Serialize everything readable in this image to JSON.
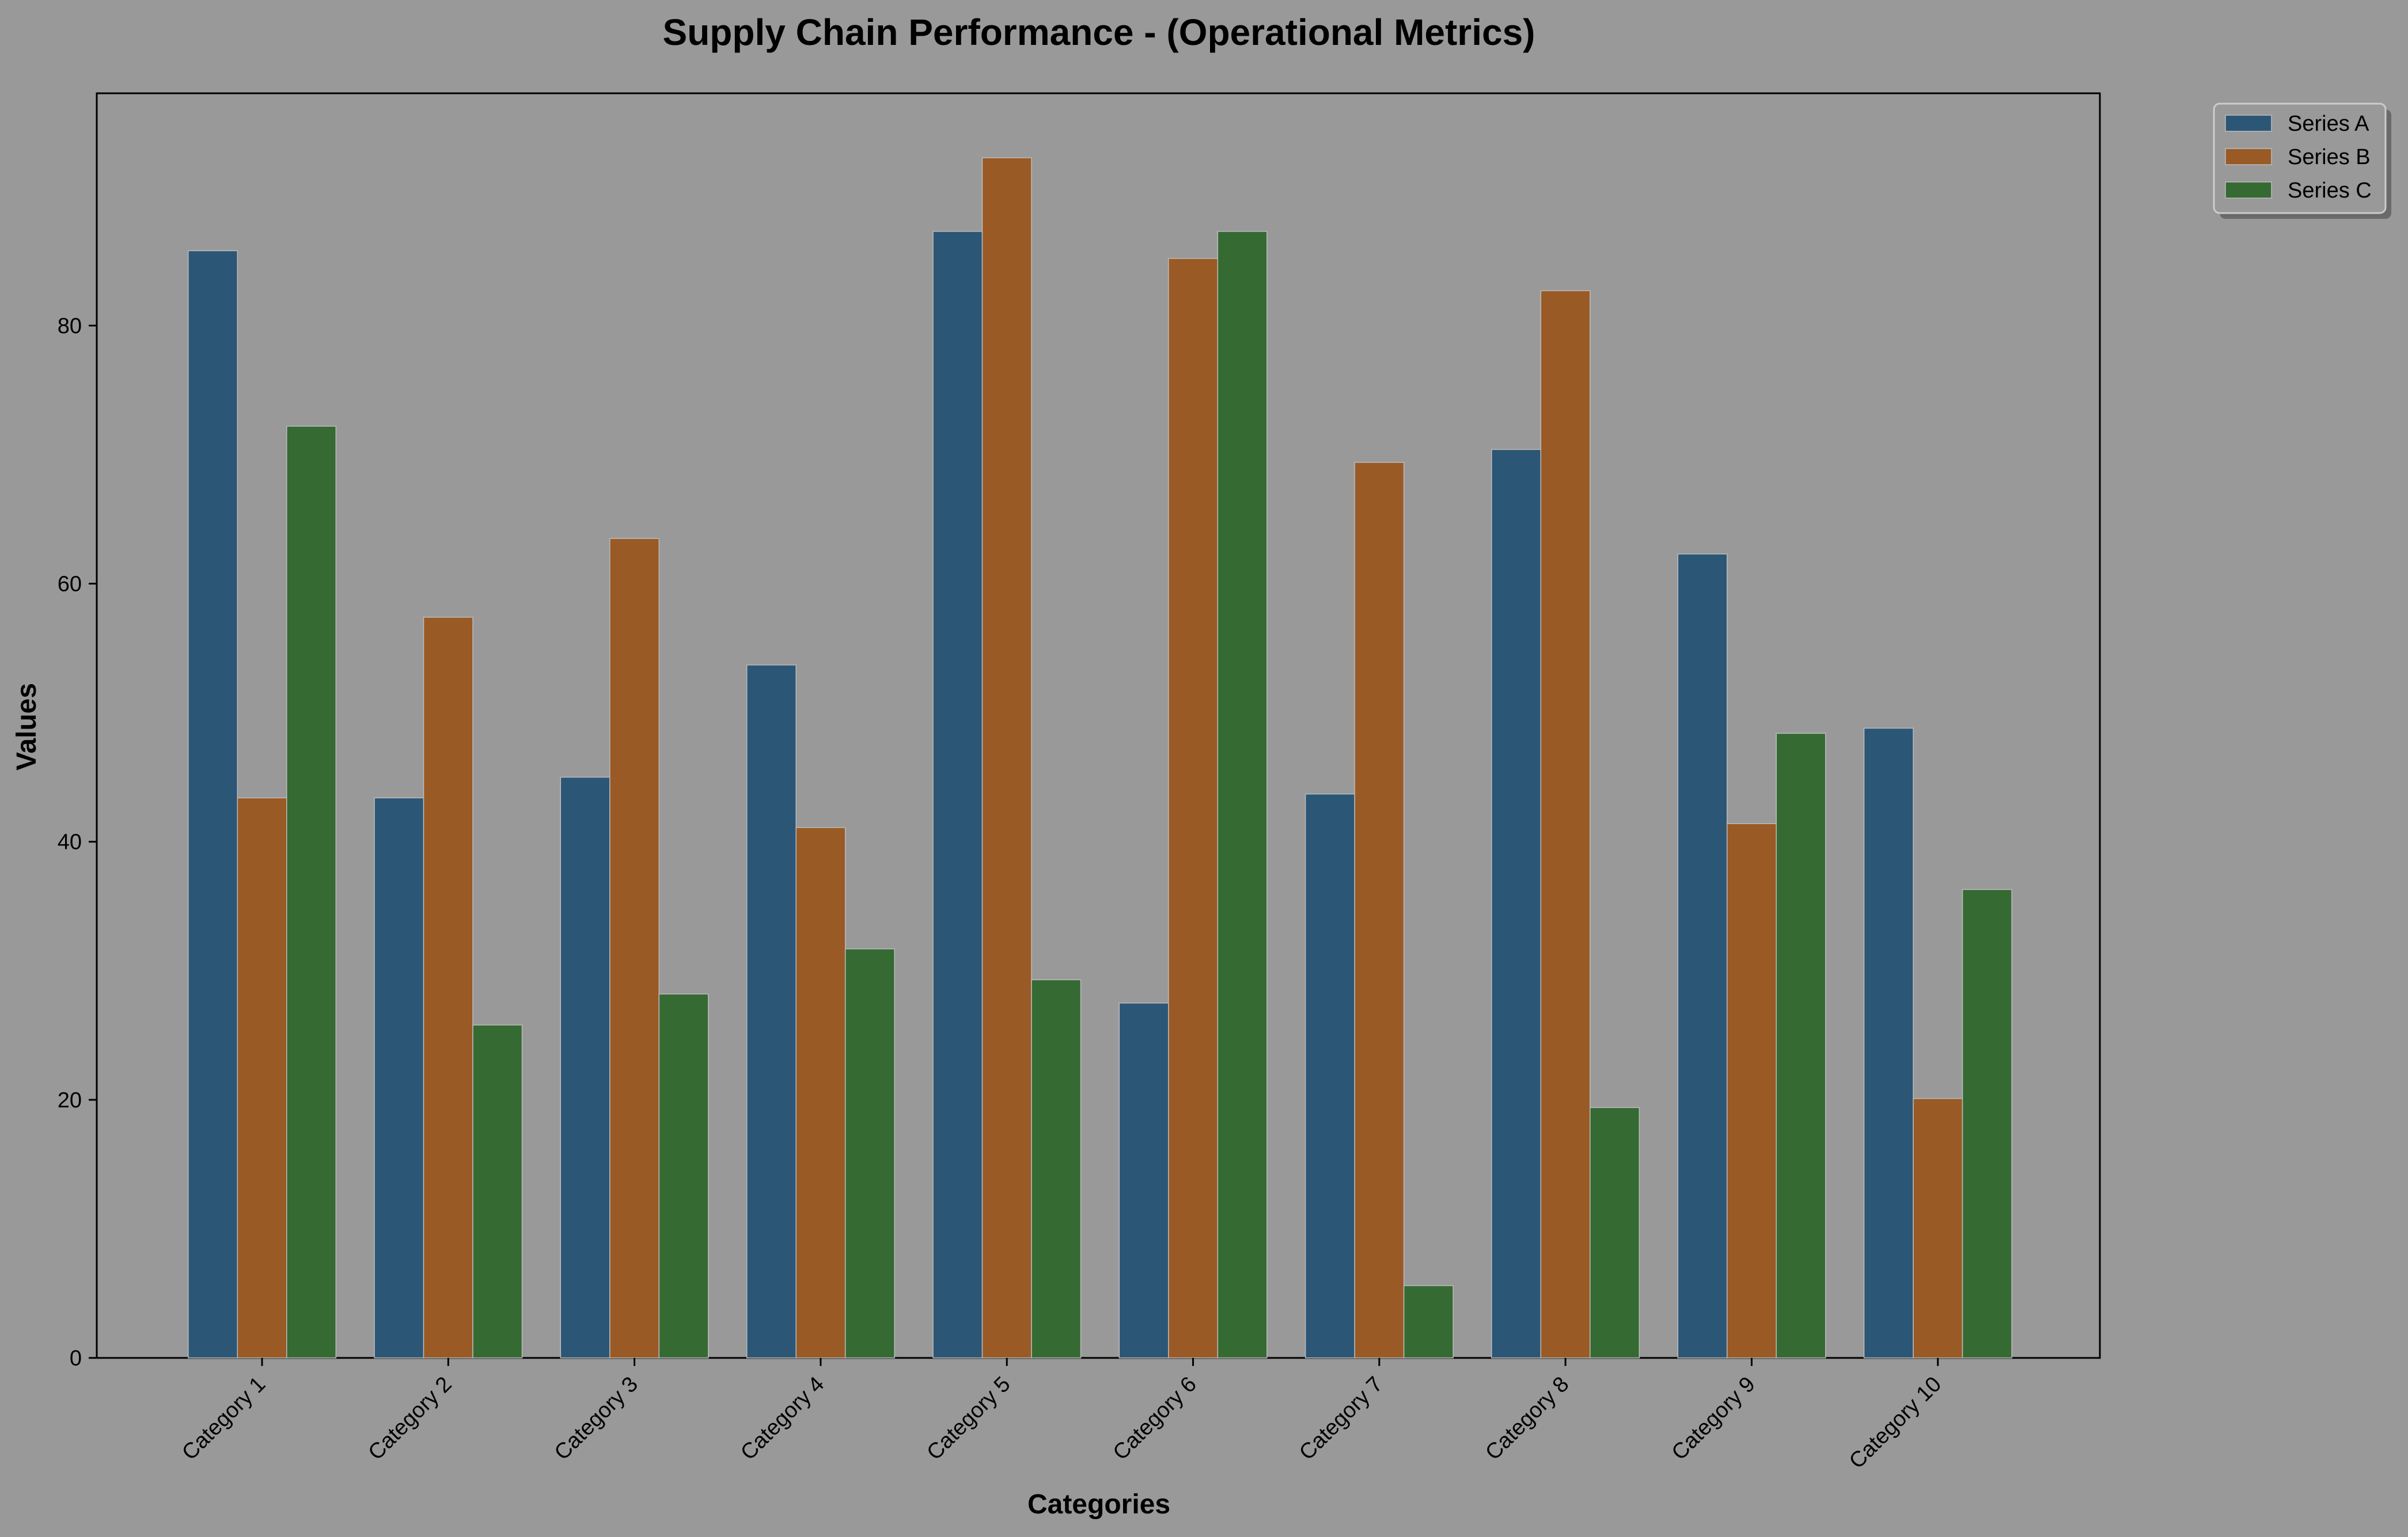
{
  "chart_data": {
    "type": "bar",
    "title": "Supply Chain Performance - (Operational Metrics)",
    "xlabel": "Categories",
    "ylabel": "Values",
    "ylim": [
      0,
      98
    ],
    "yticks": [
      0,
      20,
      40,
      60,
      80
    ],
    "grid": false,
    "legend_position": "top-right-outside",
    "categories": [
      "Category 1",
      "Category 2",
      "Category 3",
      "Category 4",
      "Category 5",
      "Category 6",
      "Category 7",
      "Category 8",
      "Category 9",
      "Category 10"
    ],
    "series": [
      {
        "name": "Series A",
        "color": "#2c5676",
        "values": [
          85.8,
          43.4,
          45.0,
          53.7,
          87.3,
          27.5,
          43.7,
          70.4,
          62.3,
          48.8
        ]
      },
      {
        "name": "Series B",
        "color": "#995a26",
        "values": [
          43.4,
          57.4,
          63.5,
          41.1,
          93.0,
          85.2,
          69.4,
          82.7,
          41.4,
          20.1
        ]
      },
      {
        "name": "Series C",
        "color": "#356a33",
        "values": [
          72.2,
          25.8,
          28.2,
          31.7,
          29.3,
          87.3,
          5.6,
          19.4,
          48.4,
          36.3
        ]
      }
    ]
  }
}
